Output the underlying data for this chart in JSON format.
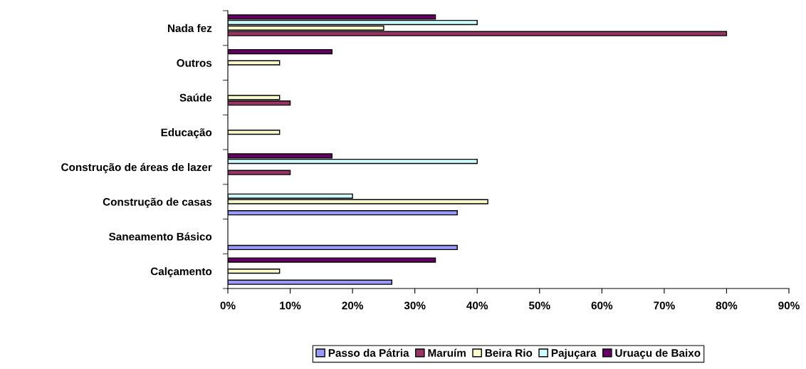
{
  "chart_data": {
    "type": "bar",
    "orientation": "horizontal",
    "categories": [
      "Nada fez",
      "Outros",
      "Saúde",
      "Educação",
      "Construção de áreas de lazer",
      "Construção de casas",
      "Saneamento Básico",
      "Calçamento"
    ],
    "series": [
      {
        "name": "Passo da Pátria",
        "color": "#9999ff",
        "values": [
          null,
          null,
          null,
          null,
          null,
          36.8,
          36.8,
          26.3
        ]
      },
      {
        "name": "Maruím",
        "color": "#993366",
        "values": [
          80,
          null,
          10,
          null,
          10,
          null,
          null,
          null
        ]
      },
      {
        "name": "Beira Rio",
        "color": "#ffffcc",
        "values": [
          25,
          8.3,
          8.3,
          8.3,
          null,
          41.7,
          null,
          8.3
        ]
      },
      {
        "name": "Pajuçara",
        "color": "#ccffff",
        "values": [
          40,
          null,
          null,
          null,
          40,
          20,
          null,
          null
        ]
      },
      {
        "name": "Uruaçu de Baixo",
        "color": "#660066",
        "values": [
          33.3,
          16.7,
          null,
          null,
          16.7,
          null,
          null,
          33.3
        ]
      }
    ],
    "xlim": [
      0,
      90
    ],
    "xticks": [
      {
        "value": 0,
        "label": "0%"
      },
      {
        "value": 10,
        "label": "10%"
      },
      {
        "value": 20,
        "label": "20%"
      },
      {
        "value": 30,
        "label": "30%"
      },
      {
        "value": 40,
        "label": "40%"
      },
      {
        "value": 50,
        "label": "50%"
      },
      {
        "value": 60,
        "label": "60%"
      },
      {
        "value": 70,
        "label": "70%"
      },
      {
        "value": 80,
        "label": "80%"
      },
      {
        "value": 90,
        "label": "90%"
      }
    ],
    "legend": "bottom",
    "grid": false
  }
}
